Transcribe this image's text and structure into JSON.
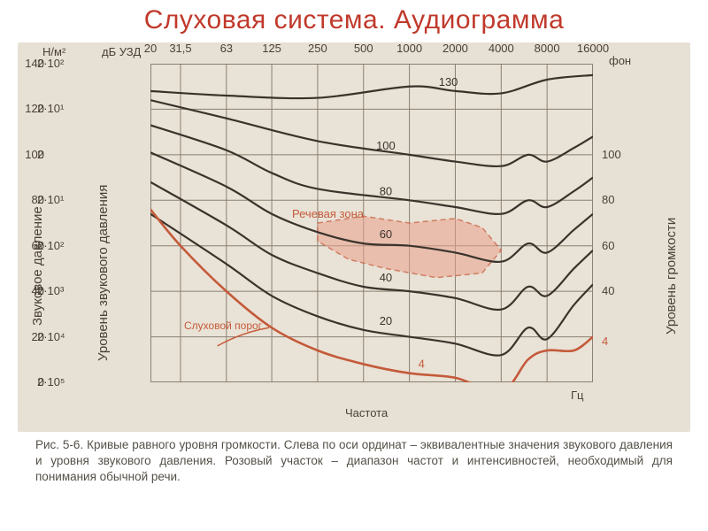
{
  "title": "Слуховая система. Аудиограмма",
  "figure": {
    "background_color": "#e7e0d5",
    "plot_background": "#e9e2d6",
    "grid_color": "#8a8071",
    "curve_color": "#3a332b",
    "highlight_color": "#c45a3a",
    "speech_zone_fill": "#e9a18c",
    "units": {
      "pressure": "Н/м²",
      "spl": "дБ УЗД",
      "phon": "фон",
      "freq": "Гц"
    },
    "y_left_pressure": [
      {
        "label": "2·10²",
        "db": 140
      },
      {
        "label": "2·10¹",
        "db": 120
      },
      {
        "label": "2",
        "db": 100
      },
      {
        "label": "2·10⁻¹",
        "db": 80
      },
      {
        "label": "2·10⁻²",
        "db": 60
      },
      {
        "label": "2·10⁻³",
        "db": 40
      },
      {
        "label": "2·10⁻⁴",
        "db": 20
      },
      {
        "label": "2·10⁻⁵",
        "db": 0
      }
    ],
    "y_left_db": {
      "min": 0,
      "max": 140,
      "step": 20,
      "ticks": [
        0,
        20,
        40,
        60,
        80,
        100,
        120,
        140
      ]
    },
    "y_right_phon": [
      {
        "label": "100",
        "db": 100
      },
      {
        "label": "80",
        "db": 80
      },
      {
        "label": "60",
        "db": 60
      },
      {
        "label": "40",
        "db": 40
      },
      {
        "label": "4",
        "db": 18,
        "color": "#c45a3a"
      }
    ],
    "x_ticks_hz": [
      20,
      31.5,
      63,
      125,
      250,
      500,
      1000,
      2000,
      4000,
      8000,
      16000
    ],
    "x_label": "Частота",
    "y_label_left1": "Звуковое давление",
    "y_label_left2": "Уровень звукового давления",
    "y_label_right": "Уровень громкости",
    "curves": [
      {
        "phon": 130,
        "color": "#3a332b",
        "points": [
          [
            20,
            128
          ],
          [
            63,
            126
          ],
          [
            250,
            125
          ],
          [
            1000,
            130
          ],
          [
            2000,
            128
          ],
          [
            4000,
            127
          ],
          [
            8000,
            133
          ],
          [
            16000,
            135
          ]
        ],
        "inline_label": "130",
        "label_x": 1800
      },
      {
        "phon": 100,
        "color": "#3a332b",
        "points": [
          [
            20,
            124
          ],
          [
            63,
            116
          ],
          [
            250,
            106
          ],
          [
            1000,
            100
          ],
          [
            2000,
            97
          ],
          [
            4000,
            95
          ],
          [
            6000,
            100
          ],
          [
            8000,
            97
          ],
          [
            12000,
            103
          ],
          [
            16000,
            108
          ]
        ],
        "inline_label": "100",
        "label_x": 700
      },
      {
        "phon": 80,
        "color": "#3a332b",
        "points": [
          [
            20,
            113
          ],
          [
            63,
            102
          ],
          [
            125,
            92
          ],
          [
            250,
            85
          ],
          [
            1000,
            80
          ],
          [
            2000,
            77
          ],
          [
            4000,
            74
          ],
          [
            6000,
            80
          ],
          [
            8000,
            77
          ],
          [
            12000,
            84
          ],
          [
            16000,
            90
          ]
        ],
        "inline_label": "80",
        "label_x": 700
      },
      {
        "phon": 60,
        "color": "#3a332b",
        "points": [
          [
            20,
            101
          ],
          [
            63,
            86
          ],
          [
            125,
            74
          ],
          [
            250,
            66
          ],
          [
            500,
            61
          ],
          [
            1000,
            60
          ],
          [
            2000,
            57
          ],
          [
            4000,
            53
          ],
          [
            6000,
            61
          ],
          [
            8000,
            57
          ],
          [
            12000,
            67
          ],
          [
            16000,
            74
          ]
        ],
        "inline_label": "60",
        "label_x": 700
      },
      {
        "phon": 40,
        "color": "#3a332b",
        "points": [
          [
            20,
            88
          ],
          [
            63,
            69
          ],
          [
            125,
            56
          ],
          [
            250,
            48
          ],
          [
            500,
            42
          ],
          [
            1000,
            40
          ],
          [
            2000,
            37
          ],
          [
            4000,
            32
          ],
          [
            6000,
            42
          ],
          [
            8000,
            38
          ],
          [
            12000,
            50
          ],
          [
            16000,
            58
          ]
        ],
        "inline_label": "40",
        "label_x": 700
      },
      {
        "phon": 20,
        "color": "#3a332b",
        "points": [
          [
            20,
            74
          ],
          [
            63,
            52
          ],
          [
            125,
            38
          ],
          [
            250,
            29
          ],
          [
            500,
            23
          ],
          [
            1000,
            20
          ],
          [
            2000,
            17
          ],
          [
            4000,
            12
          ],
          [
            6000,
            24
          ],
          [
            8000,
            19
          ],
          [
            12000,
            34
          ],
          [
            16000,
            43
          ]
        ],
        "inline_label": "20",
        "label_x": 700
      },
      {
        "phon": 4,
        "color": "#c45a3a",
        "points": [
          [
            20,
            76
          ],
          [
            31.5,
            60
          ],
          [
            63,
            40
          ],
          [
            125,
            24
          ],
          [
            250,
            14
          ],
          [
            500,
            8
          ],
          [
            1000,
            4
          ],
          [
            2000,
            2
          ],
          [
            4000,
            -4
          ],
          [
            6000,
            10
          ],
          [
            8000,
            14
          ],
          [
            12000,
            14
          ],
          [
            16000,
            20
          ]
        ],
        "inline_label": "4",
        "label_x": 1200,
        "is_threshold": true
      }
    ],
    "speech_zone": {
      "label": "Речевая зона",
      "points": [
        [
          250,
          70
        ],
        [
          500,
          73
        ],
        [
          1000,
          70
        ],
        [
          2000,
          72
        ],
        [
          3000,
          68
        ],
        [
          4000,
          58
        ],
        [
          3000,
          48
        ],
        [
          1500,
          46
        ],
        [
          700,
          50
        ],
        [
          400,
          54
        ],
        [
          250,
          62
        ]
      ]
    },
    "threshold_label": "Слуховой порог"
  },
  "caption": {
    "prefix": "Рис. 5-6.",
    "text": "Кривые равного уровня громкости. Слева по оси ординат – эквивалентные значения звукового давления и уровня звукового давления. Розовый участок – диапазон частот и интенсивностей, необходимый для понимания обычной речи."
  }
}
